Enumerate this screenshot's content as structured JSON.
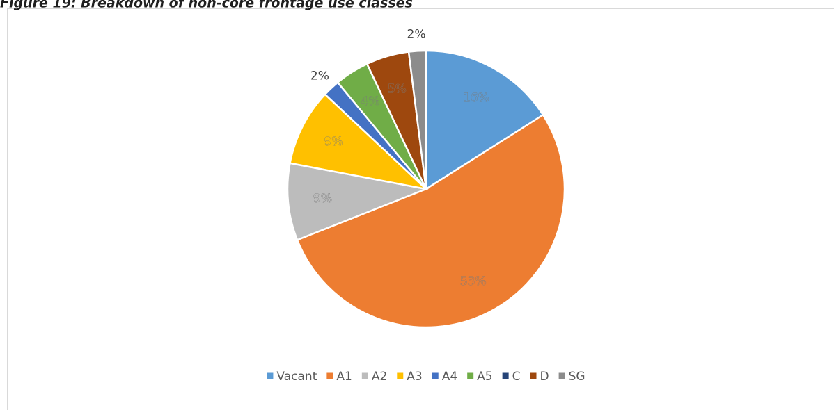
{
  "chart_data": {
    "type": "pie",
    "title": "Figure 19: Breakdown of non-core frontage use classes",
    "categories": [
      "Vacant",
      "A1",
      "A2",
      "A3",
      "A4",
      "A5",
      "C",
      "D",
      "SG"
    ],
    "values": [
      16,
      53,
      9,
      9,
      2,
      4,
      0,
      5,
      2
    ],
    "value_labels": [
      "16%",
      "53%",
      "9%",
      "9%",
      "2%",
      "4%",
      null,
      "5%",
      "2%"
    ],
    "colors": [
      "#5b9bd5",
      "#ed7d31",
      "#bcbcbc",
      "#ffc000",
      "#4472c4",
      "#70ad47",
      "#264478",
      "#9e480e",
      "#8c8c8c"
    ],
    "legend": "bottom"
  }
}
